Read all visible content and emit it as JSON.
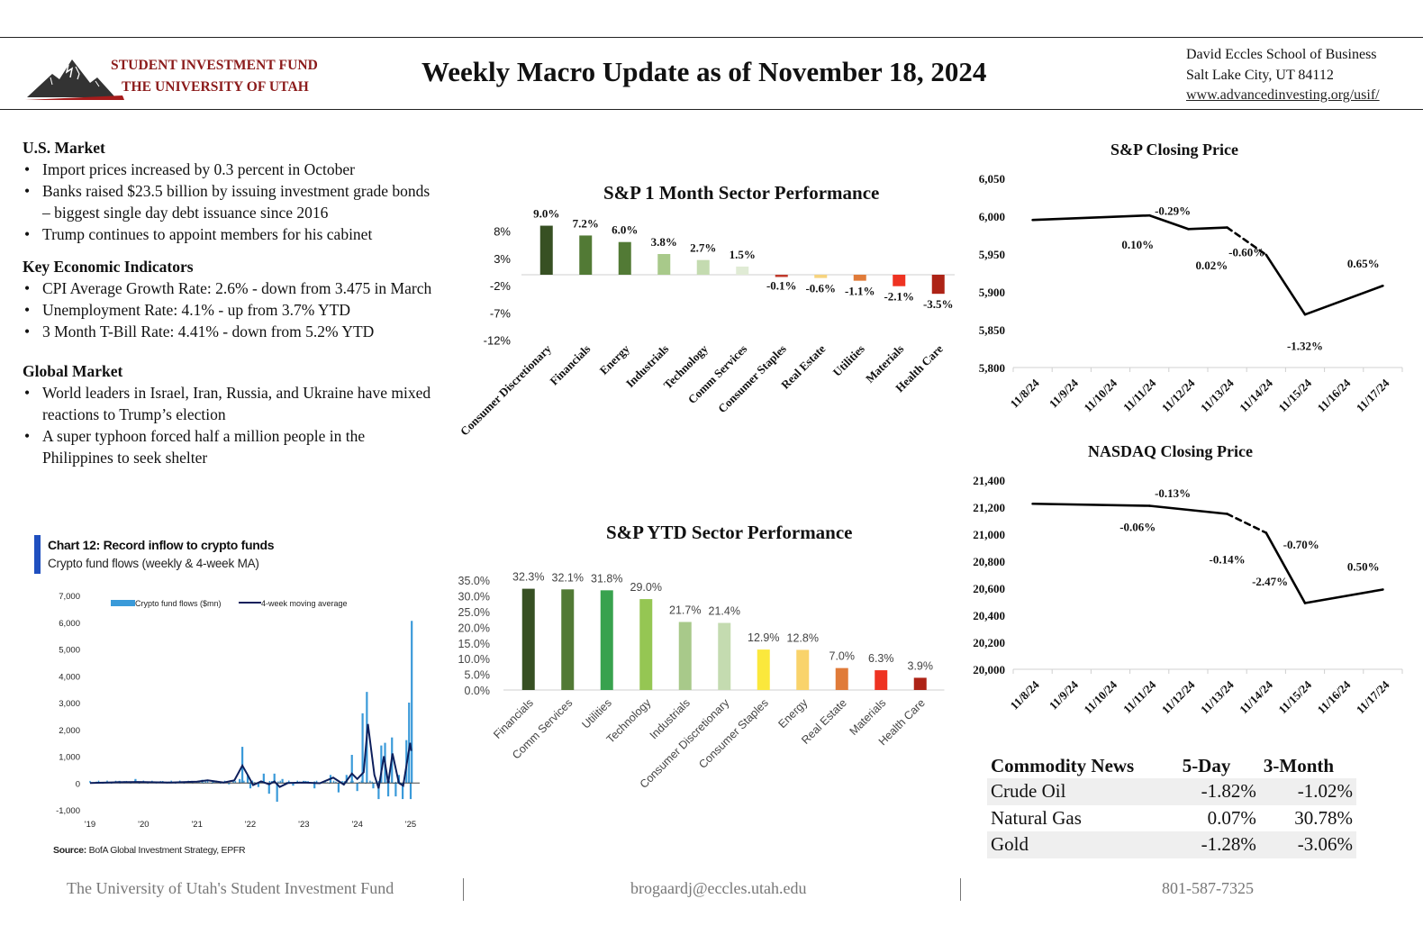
{
  "header": {
    "logo": {
      "line1": "STUDENT INVESTMENT FUND",
      "line2": "THE UNIVERSITY OF UTAH",
      "colors": {
        "text": "#8b1a1a",
        "mountain": "#333333",
        "stripe": "#a61c1c"
      }
    },
    "title": "Weekly Macro Update as of  November 18, 2024",
    "address": {
      "line1": "David Eccles School of Business",
      "line2": "Salt Lake City, UT 84112",
      "url": "www.advancedinvesting.org/usif/"
    }
  },
  "news": {
    "us_market": {
      "heading": "U.S. Market",
      "items": [
        "Import prices increased by 0.3 percent in October",
        "Banks raised $23.5 billion by issuing investment grade bonds – biggest single day debt issuance since 2016",
        "Trump continues to appoint members for his cabinet"
      ]
    },
    "indicators": {
      "heading": "Key Economic Indicators",
      "items": [
        "CPI Average Growth Rate: 2.6% - down from 3.475 in March",
        "Unemployment Rate: 4.1% - up from 3.7% YTD",
        "3 Month T-Bill Rate: 4.41% - down from 5.2% YTD"
      ]
    },
    "global_market": {
      "heading": "Global Market",
      "items": [
        "World leaders in Israel, Iran, Russia, and Ukraine have mixed reactions to Trump’s election",
        "A super typhoon forced half a million people in the Philippines to seek shelter"
      ]
    }
  },
  "crypto": {
    "title": "Chart 12: Record inflow to crypto funds",
    "subtitle": "Crypto fund flows (weekly & 4-week MA)",
    "source_label": "Source:",
    "source_text": " BofA Global Investment Strategy, EPFR",
    "accent": "#1f4fbf"
  },
  "chart_data": [
    {
      "id": "sp_1m",
      "type": "bar",
      "title": "S&P 1 Month Sector Performance",
      "categories": [
        "Consumer Discretionary",
        "Financials",
        "Energy",
        "Industrials",
        "Technology",
        "Comm Services",
        "Consumer Staples",
        "Real Estate",
        "Utilities",
        "Materials",
        "Health Care"
      ],
      "values": [
        9.0,
        7.2,
        6.0,
        3.8,
        2.7,
        1.5,
        -0.1,
        -0.6,
        -1.1,
        -2.1,
        -3.5
      ],
      "labels": [
        "9.0%",
        "7.2%",
        "6.0%",
        "3.8%",
        "2.7%",
        "1.5%",
        "-0.1%",
        "-0.6%",
        "-1.1%",
        "-2.1%",
        "-3.5%"
      ],
      "colors": [
        "#375023",
        "#527a35",
        "#527a35",
        "#a8c98a",
        "#c4dbb0",
        "#e0ebd5",
        "#c0392b",
        "#f6d37e",
        "#e07b39",
        "#ee3322",
        "#ad2316"
      ],
      "yticks": [
        "8%",
        "3%",
        "-2%",
        "-7%",
        "-12%"
      ],
      "ytick_values": [
        8,
        3,
        -2,
        -7,
        -12
      ],
      "ylim": [
        -12,
        10
      ],
      "xlabel": "",
      "ylabel": ""
    },
    {
      "id": "sp_ytd",
      "type": "bar",
      "title": "S&P YTD Sector Performance",
      "categories": [
        "Financials",
        "Comm Services",
        "Utilities",
        "Technology",
        "Industrials",
        "Consumer Discretionary",
        "Consumer Staples",
        "Energy",
        "Real Estate",
        "Materials",
        "Health Care"
      ],
      "values": [
        32.3,
        32.1,
        31.8,
        29.0,
        21.7,
        21.4,
        12.9,
        12.8,
        7.0,
        6.3,
        3.9
      ],
      "labels": [
        "32.3%",
        "32.1%",
        "31.8%",
        "29.0%",
        "21.7%",
        "21.4%",
        "12.9%",
        "12.8%",
        "7.0%",
        "6.3%",
        "3.9%"
      ],
      "colors": [
        "#375023",
        "#527a35",
        "#38a24e",
        "#95c653",
        "#a8c98a",
        "#c4dbb0",
        "#fbe83c",
        "#f9d36b",
        "#e07b39",
        "#ee3322",
        "#ad2316"
      ],
      "yticks": [
        "35.0%",
        "30.0%",
        "25.0%",
        "20.0%",
        "15.0%",
        "10.0%",
        "5.0%",
        "0.0%"
      ],
      "ytick_values": [
        35,
        30,
        25,
        20,
        15,
        10,
        5,
        0
      ],
      "ylim": [
        0,
        35
      ],
      "xlabel": "",
      "ylabel": ""
    },
    {
      "id": "sp_close",
      "type": "line",
      "title": "S&P Closing Price",
      "x": [
        "11/8/24",
        "11/9/24",
        "11/10/24",
        "11/11/24",
        "11/12/24",
        "11/13/24",
        "11/14/24",
        "11/15/24",
        "11/16/24",
        "11/17/24"
      ],
      "points": [
        {
          "x": 0,
          "y": 5995
        },
        {
          "x": 3,
          "y": 6001
        },
        {
          "x": 4,
          "y": 5983
        },
        {
          "x": 5,
          "y": 5985
        },
        {
          "x": 6,
          "y": 5949
        },
        {
          "x": 7,
          "y": 5870
        },
        {
          "x": 9,
          "y": 5908
        }
      ],
      "dashed_segment": [
        5,
        6
      ],
      "annotations": [
        {
          "text": "0.10%",
          "x": 2.7,
          "y": 5957
        },
        {
          "text": "-0.29%",
          "x": 3.6,
          "y": 6002
        },
        {
          "text": "0.02%",
          "x": 4.6,
          "y": 5930
        },
        {
          "text": "-0.60%",
          "x": 5.5,
          "y": 5947
        },
        {
          "text": "-1.32%",
          "x": 7.0,
          "y": 5823
        },
        {
          "text": "0.65%",
          "x": 8.5,
          "y": 5932
        }
      ],
      "yticks": [
        "6,050",
        "6,000",
        "5,950",
        "5,900",
        "5,850",
        "5,800"
      ],
      "ytick_values": [
        6050,
        6000,
        5950,
        5900,
        5850,
        5800
      ],
      "ylim": [
        5800,
        6050
      ],
      "xlabel": "",
      "ylabel": ""
    },
    {
      "id": "nasdaq_close",
      "type": "line",
      "title": "NASDAQ Closing Price",
      "x": [
        "11/8/24",
        "11/9/24",
        "11/10/24",
        "11/11/24",
        "11/12/24",
        "11/13/24",
        "11/14/24",
        "11/15/24",
        "11/16/24",
        "11/17/24"
      ],
      "points": [
        {
          "x": 0,
          "y": 21225
        },
        {
          "x": 3,
          "y": 21210
        },
        {
          "x": 5,
          "y": 21150
        },
        {
          "x": 6,
          "y": 21010
        },
        {
          "x": 7,
          "y": 20490
        },
        {
          "x": 9,
          "y": 20590
        }
      ],
      "dashed_segment": [
        5,
        6
      ],
      "annotations": [
        {
          "text": "-0.13%",
          "x": 3.6,
          "y": 21275
        },
        {
          "text": "-0.06%",
          "x": 2.7,
          "y": 21025
        },
        {
          "text": "-0.14%",
          "x": 5.0,
          "y": 20785
        },
        {
          "text": "-0.70%",
          "x": 6.9,
          "y": 20895
        },
        {
          "text": "-2.47%",
          "x": 6.1,
          "y": 20620
        },
        {
          "text": "0.50%",
          "x": 8.5,
          "y": 20730
        }
      ],
      "yticks": [
        "21,400",
        "21,200",
        "21,000",
        "20,800",
        "20,600",
        "20,400",
        "20,200",
        "20,000"
      ],
      "ytick_values": [
        21400,
        21200,
        21000,
        20800,
        20600,
        20400,
        20200,
        20000
      ],
      "ylim": [
        20000,
        21400
      ],
      "xlabel": "",
      "ylabel": ""
    },
    {
      "id": "crypto_flows",
      "type": "bar",
      "title": "Chart 12: Record inflow to crypto funds",
      "subtitle": "Crypto fund flows (weekly & 4-week MA)",
      "legend": [
        "Crypto fund flows ($mn)",
        "4-week moving average"
      ],
      "legend_position": "top",
      "series_colors": [
        "#3a9ad9",
        "#0d1f5c"
      ],
      "xticks": [
        "'19",
        "'20",
        "'21",
        "'22",
        "'23",
        "'24",
        "'25"
      ],
      "yticks": [
        "7,000",
        "6,000",
        "5,000",
        "4,000",
        "3,000",
        "2,000",
        "1,000",
        "0",
        "-1,000"
      ],
      "ytick_values": [
        7000,
        6000,
        5000,
        4000,
        3000,
        2000,
        1000,
        0,
        -1000
      ],
      "ylim": [
        -1000,
        7000
      ],
      "xlim": [
        2019,
        2025
      ],
      "flows": [
        [
          2019.3,
          30
        ],
        [
          2019.55,
          80
        ],
        [
          2019.85,
          150
        ],
        [
          2020.5,
          30
        ],
        [
          2020.9,
          80
        ],
        [
          2021.1,
          120
        ],
        [
          2021.3,
          70
        ],
        [
          2021.6,
          -50
        ],
        [
          2021.8,
          150
        ],
        [
          2021.85,
          1350
        ],
        [
          2021.95,
          300
        ],
        [
          2022.0,
          -200
        ],
        [
          2022.15,
          -150
        ],
        [
          2022.25,
          350
        ],
        [
          2022.35,
          -400
        ],
        [
          2022.45,
          350
        ],
        [
          2022.5,
          -700
        ],
        [
          2022.6,
          150
        ],
        [
          2022.8,
          -100
        ],
        [
          2023.0,
          80
        ],
        [
          2023.2,
          -200
        ],
        [
          2023.5,
          300
        ],
        [
          2023.65,
          -350
        ],
        [
          2023.8,
          300
        ],
        [
          2023.9,
          1050
        ],
        [
          2024.0,
          -300
        ],
        [
          2024.1,
          2600
        ],
        [
          2024.18,
          3400
        ],
        [
          2024.3,
          -200
        ],
        [
          2024.4,
          -600
        ],
        [
          2024.45,
          1400
        ],
        [
          2024.52,
          1500
        ],
        [
          2024.58,
          -500
        ],
        [
          2024.65,
          1700
        ],
        [
          2024.72,
          -500
        ],
        [
          2024.78,
          300
        ],
        [
          2024.85,
          -600
        ],
        [
          2024.92,
          1600
        ],
        [
          2024.97,
          3000
        ],
        [
          2025.0,
          -600
        ],
        [
          2025.02,
          6050
        ]
      ],
      "moving_average": [
        [
          2019.0,
          0
        ],
        [
          2019.5,
          30
        ],
        [
          2019.9,
          40
        ],
        [
          2020.5,
          20
        ],
        [
          2021.0,
          50
        ],
        [
          2021.2,
          100
        ],
        [
          2021.5,
          20
        ],
        [
          2021.7,
          100
        ],
        [
          2021.85,
          650
        ],
        [
          2021.95,
          300
        ],
        [
          2022.05,
          -80
        ],
        [
          2022.2,
          60
        ],
        [
          2022.35,
          -50
        ],
        [
          2022.45,
          60
        ],
        [
          2022.55,
          -150
        ],
        [
          2022.7,
          0
        ],
        [
          2023.0,
          20
        ],
        [
          2023.3,
          -10
        ],
        [
          2023.55,
          200
        ],
        [
          2023.75,
          -60
        ],
        [
          2023.9,
          350
        ],
        [
          2024.0,
          150
        ],
        [
          2024.12,
          400
        ],
        [
          2024.2,
          2200
        ],
        [
          2024.32,
          300
        ],
        [
          2024.4,
          -200
        ],
        [
          2024.5,
          1000
        ],
        [
          2024.58,
          0
        ],
        [
          2024.66,
          1100
        ],
        [
          2024.78,
          0
        ],
        [
          2024.86,
          -100
        ],
        [
          2024.95,
          1000
        ],
        [
          2024.99,
          1500
        ],
        [
          2025.01,
          1200
        ]
      ]
    }
  ],
  "commodity": {
    "headers": [
      "Commodity News",
      "5-Day",
      "3-Month"
    ],
    "rows": [
      [
        "Crude Oil",
        "-1.82%",
        "-1.02%"
      ],
      [
        "Natural Gas",
        "0.07%",
        "30.78%"
      ],
      [
        "Gold",
        "-1.28%",
        "-3.06%"
      ]
    ]
  },
  "footer": {
    "org": "The University of Utah's Student Investment Fund",
    "email": "brogaardj@eccles.utah.edu",
    "phone": "801-587-7325"
  }
}
